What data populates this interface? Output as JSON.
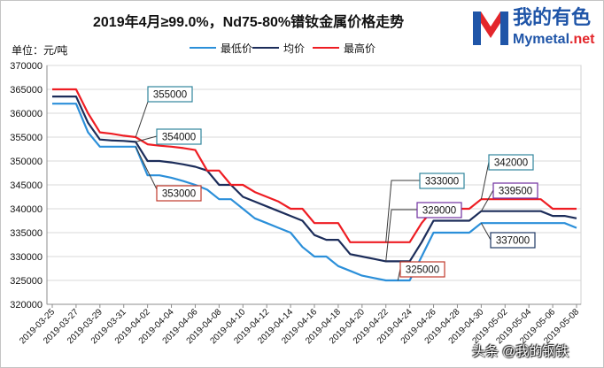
{
  "logo": {
    "cn": "我的有色",
    "en_main": "Mymetal",
    "en_tld": ".net",
    "brand_blue": "#1f55a8",
    "brand_red": "#e3262b"
  },
  "watermark": "头条 @我的钢铁",
  "chart_data": {
    "type": "line",
    "title": "2019年4月≥99.0%，Nd75-80%镨钕金属价格走势",
    "ylabel": "单位：元/吨",
    "xlabel": "",
    "ylim": [
      320000,
      370000
    ],
    "yticks": [
      320000,
      325000,
      330000,
      335000,
      340000,
      345000,
      350000,
      355000,
      360000,
      365000,
      370000
    ],
    "x_label_interval": 2,
    "x_labels": [
      "2019-03-25",
      "2019-03-27",
      "2019-03-29",
      "2019-03-31",
      "2019-04-02",
      "2019-04-04",
      "2019-04-06",
      "2019-04-08",
      "2019-04-10",
      "2019-04-12",
      "2019-04-14",
      "2019-04-16",
      "2019-04-18",
      "2019-04-20",
      "2019-04-22",
      "2019-04-24",
      "2019-04-26",
      "2019-04-28",
      "2019-04-30",
      "2019-05-02",
      "2019-05-04",
      "2019-05-06",
      "2019-05-08"
    ],
    "series": [
      {
        "name": "最低价",
        "color": "#2b8fd9",
        "values": [
          362000,
          362000,
          362000,
          356000,
          353000,
          353000,
          353000,
          353000,
          347000,
          347000,
          346500,
          345800,
          345000,
          344000,
          342000,
          342000,
          340000,
          338000,
          337000,
          336000,
          335000,
          332000,
          330000,
          330000,
          328000,
          327000,
          326000,
          325500,
          325000,
          325000,
          325000,
          330000,
          335000,
          335000,
          335000,
          335000,
          337000,
          337000,
          337000,
          337000,
          337000,
          337000,
          337000,
          337000,
          336000
        ]
      },
      {
        "name": "均价",
        "color": "#1c2d5a",
        "values": [
          363500,
          363500,
          363500,
          358000,
          354500,
          354300,
          354200,
          354000,
          350000,
          350000,
          349700,
          349300,
          348800,
          348000,
          345000,
          345000,
          342500,
          341500,
          340500,
          339500,
          338500,
          337500,
          334500,
          333500,
          333500,
          330500,
          330000,
          329500,
          329000,
          329000,
          329000,
          333000,
          337500,
          337500,
          337500,
          337500,
          339500,
          339500,
          339500,
          339500,
          339500,
          339500,
          338500,
          338500,
          338000
        ]
      },
      {
        "name": "最高价",
        "color": "#ee1d23",
        "values": [
          365000,
          365000,
          365000,
          360000,
          356000,
          355700,
          355300,
          355000,
          353500,
          353200,
          353000,
          352700,
          352300,
          348000,
          348000,
          345000,
          345000,
          343500,
          342500,
          341500,
          340000,
          340000,
          337000,
          337000,
          337000,
          333000,
          333000,
          333000,
          333000,
          333000,
          333000,
          337000,
          340000,
          340000,
          340000,
          340000,
          342000,
          342000,
          342000,
          342000,
          342000,
          342000,
          340000,
          340000,
          340000
        ]
      }
    ],
    "annotations": [
      {
        "label": "355000",
        "series": 2,
        "index": 7,
        "border_color": "#31859c"
      },
      {
        "label": "354000",
        "series": 1,
        "index": 7,
        "border_color": "#31859c"
      },
      {
        "label": "353000",
        "series": 0,
        "index": 7,
        "border_color": "#c0392b"
      },
      {
        "label": "333000",
        "series": 2,
        "index": 28,
        "border_color": "#31859c"
      },
      {
        "label": "329000",
        "series": 1,
        "index": 28,
        "border_color": "#7030a0"
      },
      {
        "label": "325000",
        "series": 0,
        "index": 29,
        "border_color": "#c0392b"
      },
      {
        "label": "342000",
        "series": 2,
        "index": 36,
        "border_color": "#31859c"
      },
      {
        "label": "339500",
        "series": 1,
        "index": 36,
        "border_color": "#7030a0"
      },
      {
        "label": "337000",
        "series": 0,
        "index": 36,
        "border_color": "#1f3864"
      }
    ]
  }
}
